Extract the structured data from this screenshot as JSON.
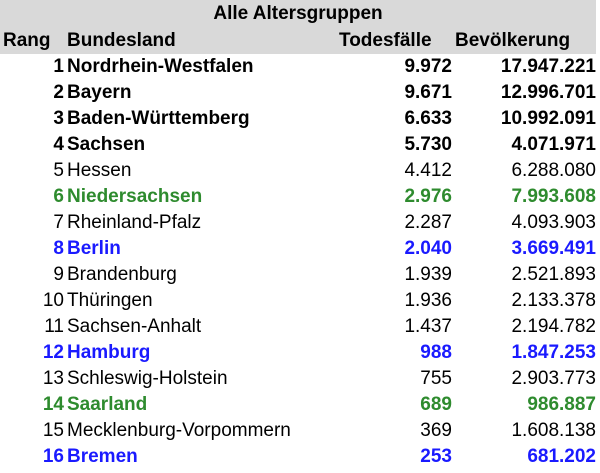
{
  "caption": "Alle Altersgruppen",
  "headers": {
    "rank": "Rang",
    "state": "Bundesland",
    "deaths": "Todesfälle",
    "population": "Bevölkerung"
  },
  "rows": [
    {
      "rank": "1",
      "state": "Nordrhein-Westfalen",
      "deaths": "9.972",
      "population": "17.947.221",
      "style": "bold"
    },
    {
      "rank": "2",
      "state": "Bayern",
      "deaths": "9.671",
      "population": "12.996.701",
      "style": "bold"
    },
    {
      "rank": "3",
      "state": "Baden-Württemberg",
      "deaths": "6.633",
      "population": "10.992.091",
      "style": "bold"
    },
    {
      "rank": "4",
      "state": "Sachsen",
      "deaths": "5.730",
      "population": "4.071.971",
      "style": "bold"
    },
    {
      "rank": "5",
      "state": "Hessen",
      "deaths": "4.412",
      "population": "6.288.080",
      "style": "normal"
    },
    {
      "rank": "6",
      "state": "Niedersachsen",
      "deaths": "2.976",
      "population": "7.993.608",
      "style": "green"
    },
    {
      "rank": "7",
      "state": "Rheinland-Pfalz",
      "deaths": "2.287",
      "population": "4.093.903",
      "style": "normal"
    },
    {
      "rank": "8",
      "state": "Berlin",
      "deaths": "2.040",
      "population": "3.669.491",
      "style": "blue"
    },
    {
      "rank": "9",
      "state": "Brandenburg",
      "deaths": "1.939",
      "population": "2.521.893",
      "style": "normal"
    },
    {
      "rank": "10",
      "state": "Thüringen",
      "deaths": "1.936",
      "population": "2.133.378",
      "style": "normal"
    },
    {
      "rank": "11",
      "state": "Sachsen-Anhalt",
      "deaths": "1.437",
      "population": "2.194.782",
      "style": "normal"
    },
    {
      "rank": "12",
      "state": "Hamburg",
      "deaths": "988",
      "population": "1.847.253",
      "style": "blue"
    },
    {
      "rank": "13",
      "state": "Schleswig-Holstein",
      "deaths": "755",
      "population": "2.903.773",
      "style": "normal"
    },
    {
      "rank": "14",
      "state": "Saarland",
      "deaths": "689",
      "population": "986.887",
      "style": "green"
    },
    {
      "rank": "15",
      "state": "Mecklenburg-Vorpommern",
      "deaths": "369",
      "population": "1.608.138",
      "style": "normal"
    },
    {
      "rank": "16",
      "state": "Bremen",
      "deaths": "253",
      "population": "681.202",
      "style": "blue"
    }
  ],
  "colors": {
    "header_bg": "#d9d9d9",
    "green": "#2e8b2e",
    "blue": "#1a1aff",
    "text": "#000000"
  }
}
